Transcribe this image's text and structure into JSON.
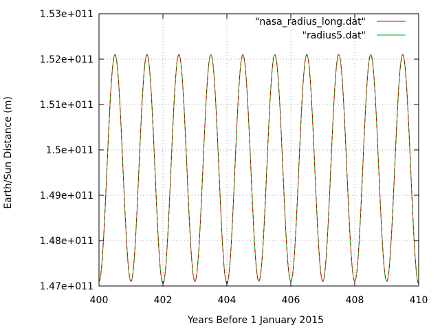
{
  "chart_data": {
    "type": "line",
    "title": "",
    "xlabel": "Years Before 1 January 2015",
    "ylabel": "Earth/Sun Distance (m)",
    "xlim": [
      400,
      410
    ],
    "ylim": [
      147000000000,
      153000000000
    ],
    "x_ticks": [
      400,
      402,
      404,
      406,
      408,
      410
    ],
    "x_tick_labels": [
      "400",
      "402",
      "404",
      "406",
      "408",
      "410"
    ],
    "y_ticks": [
      147000000000,
      148000000000,
      149000000000,
      150000000000,
      151000000000,
      152000000000,
      153000000000
    ],
    "y_tick_labels": [
      "1.47e+011",
      "1.48e+011",
      "1.49e+011",
      "1.5e+011",
      "1.51e+011",
      "1.52e+011",
      "1.53e+011"
    ],
    "grid": true,
    "legend_position": "top-right",
    "series": [
      {
        "name": "\"nasa_radius_long.dat\"",
        "color": "#cc0000",
        "dash": true,
        "extrema": [
          {
            "x": 400.0,
            "y": 147100000000,
            "kind": "min"
          },
          {
            "x": 400.5,
            "y": 152100000000,
            "kind": "max"
          },
          {
            "x": 401.0,
            "y": 147100000000,
            "kind": "min"
          },
          {
            "x": 401.5,
            "y": 152100000000,
            "kind": "max"
          },
          {
            "x": 402.0,
            "y": 147050000000,
            "kind": "min"
          },
          {
            "x": 402.5,
            "y": 152100000000,
            "kind": "max"
          },
          {
            "x": 403.0,
            "y": 147100000000,
            "kind": "min"
          },
          {
            "x": 403.5,
            "y": 152100000000,
            "kind": "max"
          },
          {
            "x": 404.0,
            "y": 147050000000,
            "kind": "min"
          },
          {
            "x": 404.5,
            "y": 152100000000,
            "kind": "max"
          },
          {
            "x": 405.0,
            "y": 147100000000,
            "kind": "min"
          },
          {
            "x": 405.5,
            "y": 152100000000,
            "kind": "max"
          },
          {
            "x": 406.0,
            "y": 147100000000,
            "kind": "min"
          },
          {
            "x": 406.5,
            "y": 152100000000,
            "kind": "max"
          },
          {
            "x": 407.0,
            "y": 147100000000,
            "kind": "min"
          },
          {
            "x": 407.5,
            "y": 152100000000,
            "kind": "max"
          },
          {
            "x": 408.0,
            "y": 147100000000,
            "kind": "min"
          },
          {
            "x": 408.5,
            "y": 152100000000,
            "kind": "max"
          },
          {
            "x": 409.0,
            "y": 147100000000,
            "kind": "min"
          },
          {
            "x": 409.5,
            "y": 152100000000,
            "kind": "max"
          },
          {
            "x": 410.0,
            "y": 147050000000,
            "kind": "min"
          }
        ]
      },
      {
        "name": "\"radius5.dat\"",
        "color": "#00aa00",
        "dash": false,
        "extrema": [
          {
            "x": 400.0,
            "y": 147100000000,
            "kind": "min"
          },
          {
            "x": 400.5,
            "y": 152100000000,
            "kind": "max"
          },
          {
            "x": 401.0,
            "y": 147100000000,
            "kind": "min"
          },
          {
            "x": 401.5,
            "y": 152100000000,
            "kind": "max"
          },
          {
            "x": 402.0,
            "y": 147050000000,
            "kind": "min"
          },
          {
            "x": 402.5,
            "y": 152100000000,
            "kind": "max"
          },
          {
            "x": 403.0,
            "y": 147100000000,
            "kind": "min"
          },
          {
            "x": 403.5,
            "y": 152100000000,
            "kind": "max"
          },
          {
            "x": 404.0,
            "y": 147050000000,
            "kind": "min"
          },
          {
            "x": 404.5,
            "y": 152100000000,
            "kind": "max"
          },
          {
            "x": 405.0,
            "y": 147100000000,
            "kind": "min"
          },
          {
            "x": 405.5,
            "y": 152100000000,
            "kind": "max"
          },
          {
            "x": 406.0,
            "y": 147100000000,
            "kind": "min"
          },
          {
            "x": 406.5,
            "y": 152100000000,
            "kind": "max"
          },
          {
            "x": 407.0,
            "y": 147100000000,
            "kind": "min"
          },
          {
            "x": 407.5,
            "y": 152100000000,
            "kind": "max"
          },
          {
            "x": 408.0,
            "y": 147100000000,
            "kind": "min"
          },
          {
            "x": 408.5,
            "y": 152100000000,
            "kind": "max"
          },
          {
            "x": 409.0,
            "y": 147100000000,
            "kind": "min"
          },
          {
            "x": 409.5,
            "y": 152100000000,
            "kind": "max"
          },
          {
            "x": 410.0,
            "y": 147050000000,
            "kind": "min"
          }
        ]
      }
    ]
  }
}
